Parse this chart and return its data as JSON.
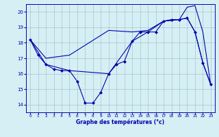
{
  "xlabel": "Graphe des températures (°c)",
  "bg_color": "#d6eff5",
  "grid_color": "#a0c8cc",
  "line_color": "#0000aa",
  "ylim": [
    13.5,
    20.5
  ],
  "xlim": [
    -0.5,
    23.5
  ],
  "yticks": [
    14,
    15,
    16,
    17,
    18,
    19,
    20
  ],
  "xticks": [
    0,
    1,
    2,
    3,
    4,
    5,
    6,
    7,
    8,
    9,
    10,
    11,
    12,
    13,
    14,
    15,
    16,
    17,
    18,
    19,
    20,
    21,
    22,
    23
  ],
  "line1_x": [
    0,
    1,
    2,
    3,
    4,
    5,
    6,
    7,
    8,
    9,
    10,
    11,
    12,
    13,
    14,
    15,
    16,
    17,
    18,
    19,
    20,
    21,
    22,
    23
  ],
  "line1_y": [
    18.2,
    17.2,
    16.6,
    16.3,
    16.2,
    16.2,
    15.5,
    14.1,
    14.1,
    14.8,
    16.0,
    16.6,
    16.8,
    18.1,
    18.7,
    18.7,
    18.7,
    19.4,
    19.5,
    19.5,
    19.6,
    18.7,
    16.7,
    15.3
  ],
  "line2_x": [
    0,
    2,
    5,
    10,
    13,
    15,
    17,
    19,
    20,
    21,
    22,
    23
  ],
  "line2_y": [
    18.2,
    17.0,
    17.2,
    18.8,
    18.7,
    18.8,
    19.4,
    19.5,
    20.3,
    20.4,
    18.7,
    15.3
  ],
  "line3_x": [
    0,
    2,
    5,
    10,
    13,
    15,
    17,
    19,
    20,
    21,
    22,
    23
  ],
  "line3_y": [
    18.2,
    16.6,
    16.2,
    16.0,
    18.1,
    18.7,
    19.4,
    19.5,
    19.6,
    18.7,
    16.7,
    15.3
  ]
}
